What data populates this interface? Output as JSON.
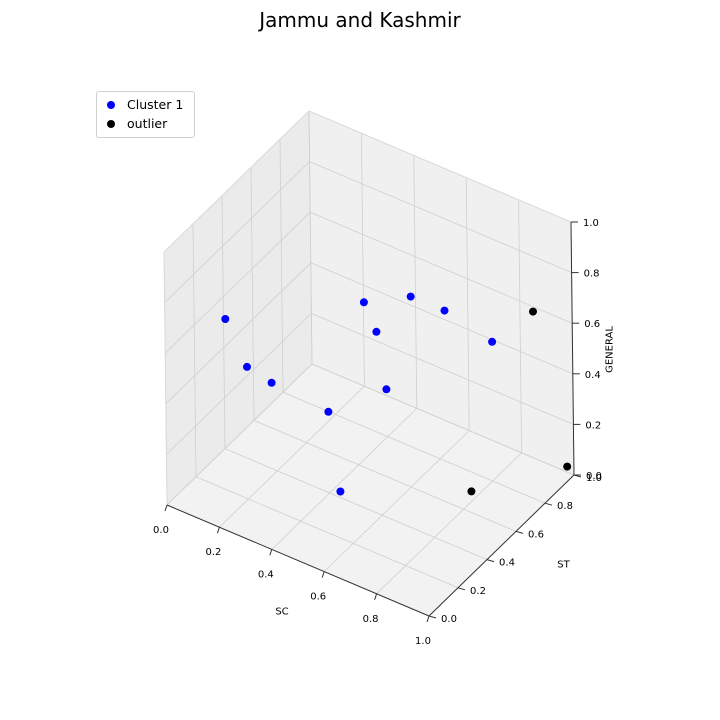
{
  "chart_data": {
    "type": "scatter3d",
    "title": "Jammu and Kashmir",
    "xlabel": "SC",
    "ylabel": "ST",
    "zlabel": "GENERAL",
    "xlim": [
      0,
      1
    ],
    "ylim": [
      0,
      1
    ],
    "zlim": [
      0,
      1
    ],
    "ticks": [
      "0.0",
      "0.2",
      "0.4",
      "0.6",
      "0.8",
      "1.0"
    ],
    "grid": true,
    "legend_position": "top-left",
    "series": [
      {
        "name": "Cluster 1",
        "color": "#0000ff",
        "points": [
          [
            0.08,
            0.27,
            0.62
          ],
          [
            0.15,
            0.29,
            0.45
          ],
          [
            0.21,
            0.35,
            0.38
          ],
          [
            0.37,
            0.45,
            0.28
          ],
          [
            0.48,
            0.33,
            0.08
          ],
          [
            0.44,
            0.66,
            0.51
          ],
          [
            0.41,
            0.63,
            0.63
          ],
          [
            0.47,
            0.67,
            0.29
          ],
          [
            0.68,
            0.47,
            0.86
          ],
          [
            0.64,
            0.77,
            0.62
          ],
          [
            0.81,
            0.79,
            0.56
          ]
        ]
      },
      {
        "name": "outlier",
        "color": "#000000",
        "points": [
          [
            0.87,
            0.53,
            0.14
          ],
          [
            0.85,
            1.0,
            0.58
          ],
          [
            0.98,
            0.99,
            0.03
          ]
        ]
      }
    ]
  }
}
